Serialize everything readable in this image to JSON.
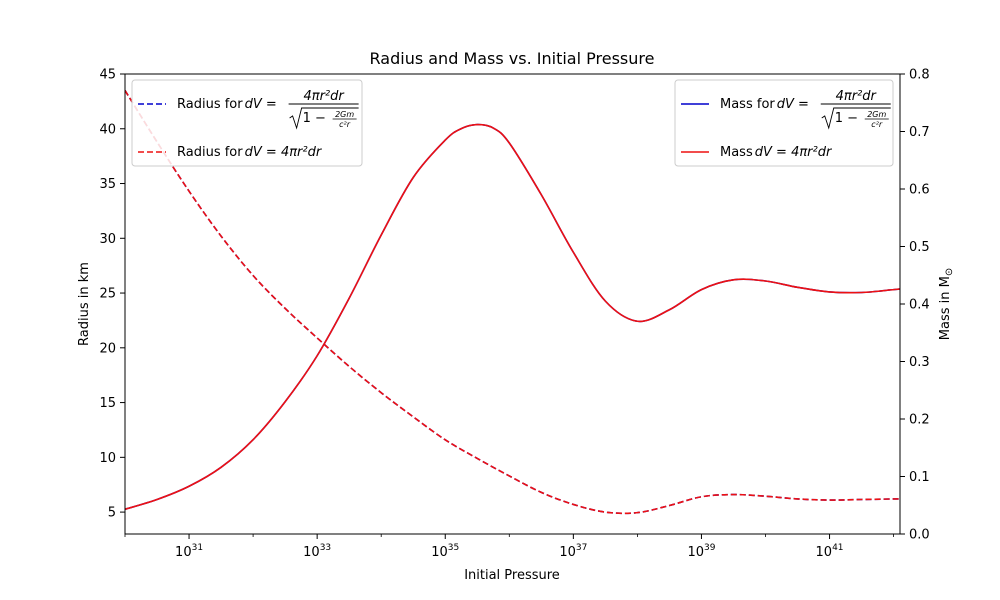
{
  "chart_data": {
    "type": "line",
    "title": "Radius and Mass vs. Initial Pressure",
    "xlabel": "Initial Pressure",
    "ylabel_left": "Radius in km",
    "ylabel_right_prefix": "Mass in M",
    "ylabel_right_subscript": "⊙",
    "x_scale": "log",
    "x_log10_range": [
      30,
      42.1
    ],
    "x_ticks": [
      {
        "exp": 31,
        "label_base": "10",
        "label_exp": "31"
      },
      {
        "exp": 33,
        "label_base": "10",
        "label_exp": "33"
      },
      {
        "exp": 35,
        "label_base": "10",
        "label_exp": "35"
      },
      {
        "exp": 37,
        "label_base": "10",
        "label_exp": "37"
      },
      {
        "exp": 39,
        "label_base": "10",
        "label_exp": "39"
      },
      {
        "exp": 41,
        "label_base": "10",
        "label_exp": "41"
      }
    ],
    "ylim_left": [
      3,
      45
    ],
    "y_ticks_left": [
      "5",
      "10",
      "15",
      "20",
      "25",
      "30",
      "35",
      "40",
      "45"
    ],
    "ylim_right": [
      0,
      0.8
    ],
    "y_ticks_right": [
      "0.0",
      "0.1",
      "0.2",
      "0.3",
      "0.4",
      "0.5",
      "0.6",
      "0.7",
      "0.8"
    ],
    "legend_left": {
      "placement": "upper-left",
      "entries": [
        {
          "prefix": "Radius for",
          "formula": "relativistic",
          "color": "#0000cc",
          "style": "dashed"
        },
        {
          "prefix": "Radius for",
          "formula": "newtonian",
          "color": "#ee1111",
          "style": "dashed"
        }
      ]
    },
    "legend_right": {
      "placement": "upper-right",
      "entries": [
        {
          "prefix": "Mass for",
          "formula": "relativistic",
          "color": "#0000cc",
          "style": "solid"
        },
        {
          "prefix": "Mass",
          "formula": "newtonian",
          "color": "#ee1111",
          "style": "solid"
        }
      ]
    },
    "formula_text": {
      "dV": "dV",
      "eq": " = ",
      "num": "4πr²dr",
      "inner_frac_num": "2Gm",
      "inner_frac_den": "c²r",
      "one_minus": "1 −",
      "newtonian": "4πr²dr"
    },
    "series": [
      {
        "name": "Radius (relativistic)",
        "axis": "left",
        "style": "dashed",
        "color": "#0000cc",
        "log10_x": [
          30,
          30.5,
          31,
          31.5,
          32,
          32.5,
          33,
          33.5,
          34,
          34.5,
          35,
          35.5,
          36,
          36.5,
          37,
          37.5,
          38,
          38.5,
          39,
          39.5,
          40,
          40.5,
          41,
          41.5,
          42,
          42.1
        ],
        "y": [
          43.5,
          38.8,
          34.3,
          30.2,
          26.6,
          23.6,
          20.9,
          18.3,
          15.9,
          13.7,
          11.6,
          9.9,
          8.3,
          6.8,
          5.7,
          5.0,
          4.95,
          5.6,
          6.4,
          6.6,
          6.45,
          6.2,
          6.1,
          6.15,
          6.2,
          6.2
        ]
      },
      {
        "name": "Radius (newtonian)",
        "axis": "left",
        "style": "dashed",
        "color": "#ee1111",
        "log10_x": [
          30,
          30.5,
          31,
          31.5,
          32,
          32.5,
          33,
          33.5,
          34,
          34.5,
          35,
          35.5,
          36,
          36.5,
          37,
          37.5,
          38,
          38.5,
          39,
          39.5,
          40,
          40.5,
          41,
          41.5,
          42,
          42.1
        ],
        "y": [
          43.5,
          38.8,
          34.3,
          30.2,
          26.6,
          23.6,
          20.9,
          18.3,
          15.9,
          13.7,
          11.6,
          9.9,
          8.3,
          6.8,
          5.7,
          5.0,
          4.95,
          5.6,
          6.4,
          6.6,
          6.45,
          6.2,
          6.1,
          6.15,
          6.2,
          6.2
        ]
      },
      {
        "name": "Mass (relativistic)",
        "axis": "right",
        "style": "solid",
        "color": "#0000cc",
        "log10_x": [
          30,
          30.5,
          31,
          31.5,
          32,
          32.5,
          33,
          33.5,
          34,
          34.5,
          35,
          35.25,
          35.5,
          35.75,
          36,
          36.5,
          37,
          37.5,
          38,
          38.5,
          39,
          39.5,
          40,
          40.5,
          41,
          41.5,
          42,
          42.1
        ],
        "y": [
          0.043,
          0.06,
          0.083,
          0.116,
          0.164,
          0.23,
          0.31,
          0.41,
          0.52,
          0.62,
          0.685,
          0.705,
          0.712,
          0.706,
          0.68,
          0.59,
          0.49,
          0.405,
          0.37,
          0.39,
          0.425,
          0.442,
          0.44,
          0.429,
          0.421,
          0.42,
          0.425,
          0.426
        ]
      },
      {
        "name": "Mass (newtonian)",
        "axis": "right",
        "style": "solid",
        "color": "#ee1111",
        "log10_x": [
          30,
          30.5,
          31,
          31.5,
          32,
          32.5,
          33,
          33.5,
          34,
          34.5,
          35,
          35.25,
          35.5,
          35.75,
          36,
          36.5,
          37,
          37.5,
          38,
          38.5,
          39,
          39.5,
          40,
          40.5,
          41,
          41.5,
          42,
          42.1
        ],
        "y": [
          0.043,
          0.06,
          0.083,
          0.116,
          0.164,
          0.23,
          0.31,
          0.41,
          0.52,
          0.62,
          0.685,
          0.705,
          0.712,
          0.706,
          0.68,
          0.59,
          0.49,
          0.405,
          0.37,
          0.39,
          0.425,
          0.442,
          0.44,
          0.429,
          0.421,
          0.42,
          0.425,
          0.426
        ]
      }
    ],
    "grid": false
  }
}
